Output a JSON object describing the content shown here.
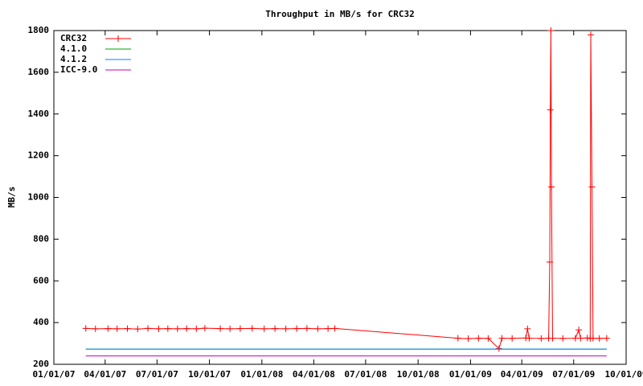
{
  "chart_data": {
    "type": "line",
    "title": "Throughput in MB/s for CRC32",
    "y_label": "MB/s",
    "xlim": [
      "2007-01-01",
      "2009-10-01"
    ],
    "xticks": [
      {
        "value": "2007-01-01",
        "label": "01/01/07"
      },
      {
        "value": "2007-04-01",
        "label": "04/01/07"
      },
      {
        "value": "2007-07-01",
        "label": "07/01/07"
      },
      {
        "value": "2007-10-01",
        "label": "10/01/07"
      },
      {
        "value": "2008-01-01",
        "label": "01/01/08"
      },
      {
        "value": "2008-04-01",
        "label": "04/01/08"
      },
      {
        "value": "2008-07-01",
        "label": "07/01/08"
      },
      {
        "value": "2008-10-01",
        "label": "10/01/08"
      },
      {
        "value": "2009-01-01",
        "label": "01/01/09"
      },
      {
        "value": "2009-04-01",
        "label": "04/01/09"
      },
      {
        "value": "2009-07-01",
        "label": "07/01/09"
      },
      {
        "value": "2009-10-01",
        "label": "10/01/09"
      }
    ],
    "ylim": [
      200,
      1800
    ],
    "yticks": [
      200,
      400,
      600,
      800,
      1000,
      1200,
      1400,
      1600,
      1800
    ],
    "legend": "top-left",
    "series": [
      {
        "name": "CRC32",
        "color": "#ff0000",
        "marker": "plus",
        "x": [
          "2007-02-26",
          "2007-03-15",
          "2007-04-06",
          "2007-04-22",
          "2007-05-10",
          "2007-05-28",
          "2007-06-15",
          "2007-07-04",
          "2007-07-20",
          "2007-08-06",
          "2007-08-22",
          "2007-09-08",
          "2007-09-23",
          "2007-10-20",
          "2007-11-06",
          "2007-11-24",
          "2007-12-15",
          "2008-01-05",
          "2008-01-24",
          "2008-02-12",
          "2008-03-02",
          "2008-03-20",
          "2008-04-08",
          "2008-04-26",
          "2008-05-08",
          "2008-12-10",
          "2008-12-28",
          "2009-01-15",
          "2009-02-01",
          "2009-02-20",
          "2009-02-25",
          "2009-03-15",
          "2009-04-08",
          "2009-04-11",
          "2009-04-14",
          "2009-05-05",
          "2009-05-18",
          "2009-05-20",
          "2009-05-21",
          "2009-05-22",
          "2009-05-23",
          "2009-05-25",
          "2009-06-12",
          "2009-07-04",
          "2009-07-10",
          "2009-07-13",
          "2009-07-25",
          "2009-07-30",
          "2009-07-31",
          "2009-08-02",
          "2009-08-04",
          "2009-08-15",
          "2009-08-28"
        ],
        "values": [
          372,
          370,
          371,
          370,
          371,
          369,
          372,
          370,
          371,
          370,
          371,
          370,
          373,
          371,
          370,
          371,
          372,
          370,
          371,
          370,
          371,
          372,
          370,
          371,
          372,
          325,
          323,
          325,
          324,
          275,
          325,
          324,
          326,
          370,
          325,
          324,
          325,
          690,
          1420,
          1800,
          1050,
          325,
          324,
          325,
          365,
          325,
          326,
          324,
          1780,
          1050,
          325,
          324,
          325
        ]
      },
      {
        "name": "4.1.0",
        "color": "#00a000",
        "x": [
          "2007-02-26",
          "2009-08-28"
        ],
        "values": [
          273,
          273
        ]
      },
      {
        "name": "4.1.2",
        "color": "#0080ff",
        "x": [
          "2007-02-26",
          "2009-08-28"
        ],
        "values": [
          273,
          273
        ]
      },
      {
        "name": "ICC-9.0",
        "color": "#c000c0",
        "x": [
          "2007-02-26",
          "2009-08-28"
        ],
        "values": [
          240,
          240
        ]
      }
    ]
  }
}
